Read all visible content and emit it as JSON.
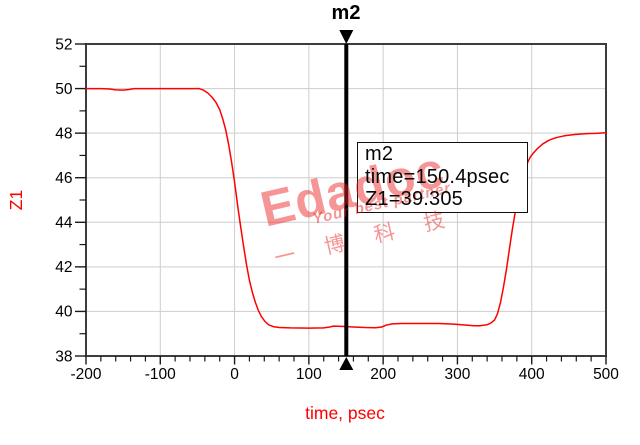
{
  "chart_data": {
    "type": "line",
    "title": "",
    "xlabel": "time, psec",
    "ylabel": "Z1",
    "xlim": [
      -200,
      500
    ],
    "ylim": [
      38,
      52
    ],
    "x_major_tick_step": 100,
    "x_minor_tick_step": 20,
    "y_major_tick_step": 2,
    "y_minor_tick_step": 1,
    "x_tick_labels": [
      "-200",
      "-100",
      "0",
      "100",
      "200",
      "300",
      "400",
      "500"
    ],
    "y_tick_labels": [
      "38",
      "40",
      "42",
      "44",
      "46",
      "48",
      "50",
      "52"
    ],
    "grid": "major",
    "legend": "none",
    "series": [
      {
        "name": "Z1",
        "color": "#ff0000",
        "points": [
          [
            -200,
            50.0
          ],
          [
            -180,
            50.0
          ],
          [
            -168,
            49.98
          ],
          [
            -160,
            49.94
          ],
          [
            -150,
            49.93
          ],
          [
            -142,
            49.96
          ],
          [
            -135,
            50.0
          ],
          [
            -100,
            50.0
          ],
          [
            -70,
            50.0
          ],
          [
            -48,
            50.0
          ],
          [
            -42,
            49.93
          ],
          [
            -36,
            49.8
          ],
          [
            -30,
            49.6
          ],
          [
            -25,
            49.38
          ],
          [
            -20,
            49.05
          ],
          [
            -16,
            48.65
          ],
          [
            -12,
            48.15
          ],
          [
            -8,
            47.5
          ],
          [
            -4,
            46.7
          ],
          [
            0,
            45.8
          ],
          [
            4,
            44.8
          ],
          [
            8,
            43.85
          ],
          [
            12,
            42.95
          ],
          [
            16,
            42.1
          ],
          [
            20,
            41.4
          ],
          [
            24,
            40.85
          ],
          [
            28,
            40.4
          ],
          [
            32,
            40.05
          ],
          [
            36,
            39.78
          ],
          [
            41,
            39.55
          ],
          [
            46,
            39.4
          ],
          [
            52,
            39.32
          ],
          [
            60,
            39.28
          ],
          [
            75,
            39.26
          ],
          [
            100,
            39.25
          ],
          [
            120,
            39.26
          ],
          [
            128,
            39.3
          ],
          [
            133,
            39.34
          ],
          [
            145,
            39.33
          ],
          [
            160,
            39.3
          ],
          [
            175,
            39.28
          ],
          [
            190,
            39.27
          ],
          [
            198,
            39.3
          ],
          [
            204,
            39.38
          ],
          [
            212,
            39.44
          ],
          [
            225,
            39.46
          ],
          [
            250,
            39.46
          ],
          [
            275,
            39.46
          ],
          [
            295,
            39.43
          ],
          [
            310,
            39.39
          ],
          [
            322,
            39.36
          ],
          [
            330,
            39.36
          ],
          [
            335,
            39.38
          ],
          [
            340,
            39.4
          ],
          [
            345,
            39.48
          ],
          [
            350,
            39.62
          ],
          [
            354,
            39.9
          ],
          [
            358,
            40.4
          ],
          [
            362,
            41.1
          ],
          [
            366,
            41.9
          ],
          [
            370,
            42.8
          ],
          [
            374,
            43.7
          ],
          [
            378,
            44.5
          ],
          [
            382,
            45.2
          ],
          [
            386,
            45.85
          ],
          [
            390,
            46.3
          ],
          [
            394,
            46.65
          ],
          [
            398,
            46.92
          ],
          [
            402,
            47.1
          ],
          [
            408,
            47.32
          ],
          [
            415,
            47.52
          ],
          [
            423,
            47.68
          ],
          [
            432,
            47.79
          ],
          [
            444,
            47.88
          ],
          [
            458,
            47.94
          ],
          [
            474,
            47.98
          ],
          [
            486,
            47.99
          ],
          [
            500,
            48.02
          ]
        ]
      }
    ],
    "marker": {
      "label": "m2",
      "x": 150.4,
      "y": 39.305,
      "info_lines": [
        "m2",
        "time=150.4psec",
        "Z1=39.305"
      ]
    }
  },
  "watermark": {
    "brand": "Edadoc",
    "tagline": "Your best partner",
    "cjk": "一博科技",
    "color": "rgba(235,30,30,0.47)"
  },
  "colors": {
    "trace": "#ff0000",
    "axis_title": "#ff0000",
    "tick_label": "#000000",
    "grid": "#cdcdcd",
    "border": "#3c3c3c",
    "tick": "#1a1a1a",
    "marker": "#000000",
    "background": "#ffffff"
  }
}
